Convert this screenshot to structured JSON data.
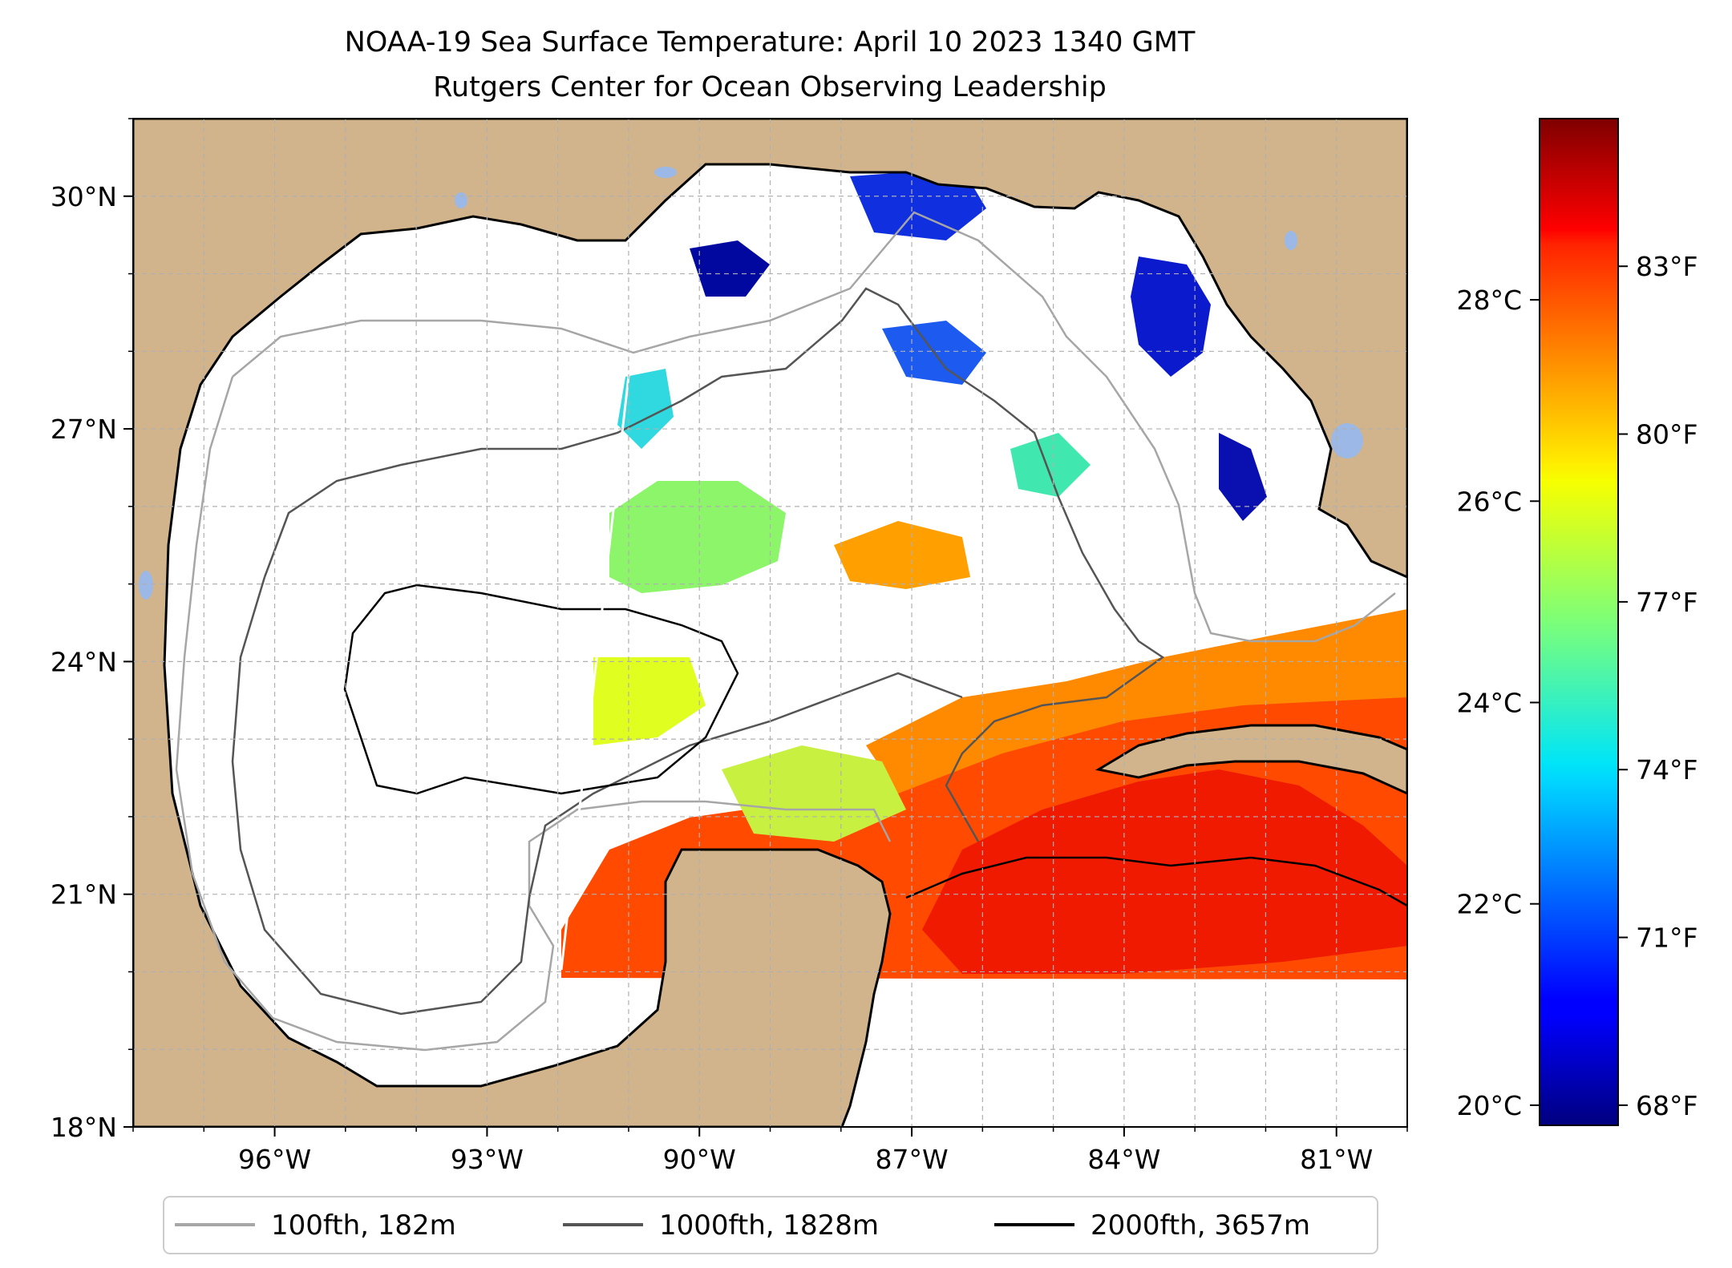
{
  "title": {
    "line1": "NOAA-19 Sea Surface Temperature: April 10 2023 1340 GMT",
    "line2": "Rutgers Center for Ocean Observing Leadership"
  },
  "map": {
    "lon_range": [
      -98.0,
      -80.0
    ],
    "lat_range": [
      18.0,
      31.0
    ],
    "lat_ticks": [
      {
        "value": 18,
        "label": "18°N"
      },
      {
        "value": 21,
        "label": "21°N"
      },
      {
        "value": 24,
        "label": "24°N"
      },
      {
        "value": 27,
        "label": "27°N"
      },
      {
        "value": 30,
        "label": "30°N"
      }
    ],
    "lon_ticks": [
      {
        "value": -96,
        "label": "96°W"
      },
      {
        "value": -93,
        "label": "93°W"
      },
      {
        "value": -90,
        "label": "90°W"
      },
      {
        "value": -87,
        "label": "87°W"
      },
      {
        "value": -84,
        "label": "84°W"
      },
      {
        "value": -81,
        "label": "81°W"
      }
    ],
    "grid": true,
    "colors": {
      "land": "#d2b48c",
      "lakes": "#9bb8e6",
      "ocean_nodata": "#ffffff",
      "grid": "#b0b0b0",
      "coast": "#000000"
    }
  },
  "colorbar": {
    "colormap": "jet",
    "range_c": [
      19.8,
      29.8
    ],
    "celsius_ticks": [
      {
        "value": 20,
        "label": "20°C"
      },
      {
        "value": 22,
        "label": "22°C"
      },
      {
        "value": 24,
        "label": "24°C"
      },
      {
        "value": 26,
        "label": "26°C"
      },
      {
        "value": 28,
        "label": "28°C"
      }
    ],
    "fahrenheit_ticks": [
      {
        "value": 68,
        "label": "68°F"
      },
      {
        "value": 71,
        "label": "71°F"
      },
      {
        "value": 74,
        "label": "74°F"
      },
      {
        "value": 77,
        "label": "77°F"
      },
      {
        "value": 80,
        "label": "80°F"
      },
      {
        "value": 83,
        "label": "83°F"
      }
    ]
  },
  "legend": {
    "placement": "bottom-center",
    "items": [
      {
        "label": "100fth, 182m",
        "color": "#a6a6a6"
      },
      {
        "label": "1000fth, 1828m",
        "color": "#555555"
      },
      {
        "label": "2000fth, 3657m",
        "color": "#000000"
      }
    ]
  }
}
